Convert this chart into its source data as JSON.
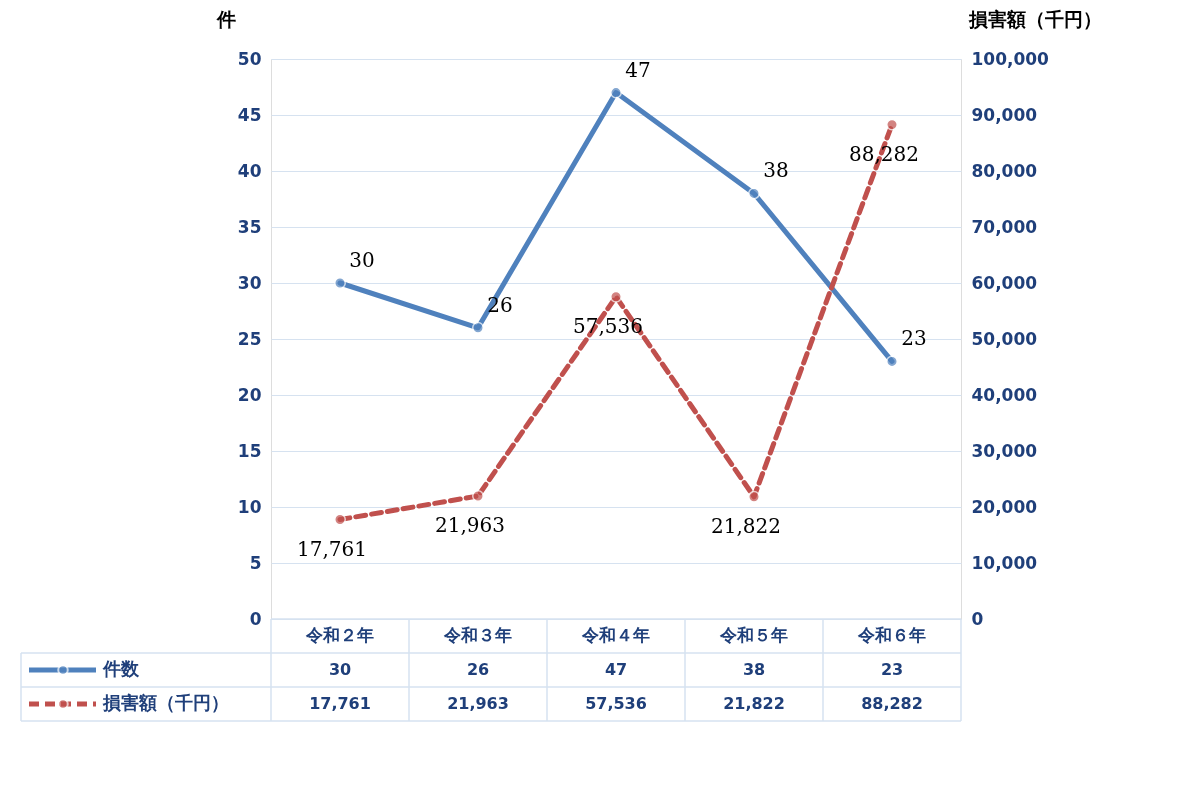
{
  "chart_data": {
    "type": "line",
    "ylabel": "件",
    "y2label": "損害額（千円）",
    "categories": [
      "令和２年",
      "令和３年",
      "令和４年",
      "令和５年",
      "令和６年"
    ],
    "series": [
      {
        "name": "件数",
        "color": "#4f81bd",
        "values": [
          30,
          26,
          47,
          38,
          23
        ],
        "value_labels": [
          "30",
          "26",
          "47",
          "38",
          "23"
        ],
        "line_style": "solid"
      },
      {
        "name": "損害額（千円）",
        "color": "#c0504d",
        "values": [
          17761,
          21963,
          57536,
          21822,
          88282
        ],
        "value_labels": [
          "17,761",
          "21,963",
          "57,536",
          "21,822",
          "88,282"
        ],
        "axis": "y2",
        "line_style": "dashed"
      }
    ],
    "ylim": [
      0,
      50
    ],
    "yticks": [
      0,
      5,
      10,
      15,
      20,
      25,
      30,
      35,
      40,
      45,
      50
    ],
    "y2lim": [
      0,
      100000
    ],
    "y2ticks": [
      0,
      {
        "value": 10000,
        "label": "10,000"
      },
      {
        "value": 20000,
        "label": "20,000"
      },
      {
        "value": 30000,
        "label": "30,000"
      },
      {
        "value": 40000,
        "label": "40,000"
      },
      {
        "value": 50000,
        "label": "50,000"
      },
      {
        "value": 60000,
        "label": "60,000"
      },
      {
        "value": 70000,
        "label": "70,000"
      },
      {
        "value": 80000,
        "label": "80,000"
      },
      {
        "value": 90000,
        "label": "90,000"
      },
      {
        "value": 100000,
        "label": "100,000"
      }
    ],
    "grid": "y",
    "legend": "bottom",
    "marker": "circle"
  }
}
